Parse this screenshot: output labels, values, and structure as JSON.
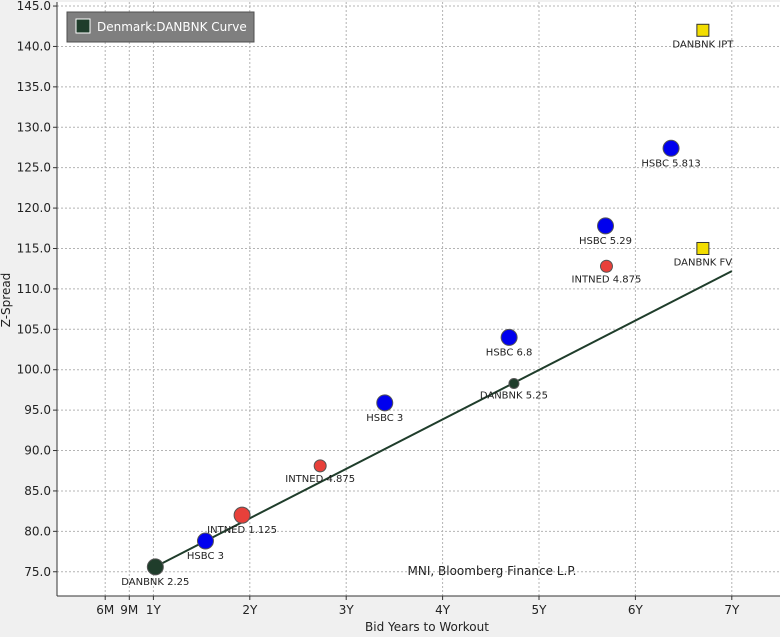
{
  "chart_data": {
    "type": "scatter",
    "title": "",
    "xlabel": "Bid Years to Workout",
    "ylabel": "Z-Spread",
    "xlim": [
      0.0,
      7.5
    ],
    "ylim": [
      72.0,
      145.5
    ],
    "x_ticks": [
      {
        "value": 0.5,
        "label": "6M"
      },
      {
        "value": 0.75,
        "label": "9M"
      },
      {
        "value": 1.0,
        "label": "1Y"
      },
      {
        "value": 2.0,
        "label": "2Y"
      },
      {
        "value": 3.0,
        "label": "3Y"
      },
      {
        "value": 4.0,
        "label": "4Y"
      },
      {
        "value": 5.0,
        "label": "5Y"
      },
      {
        "value": 6.0,
        "label": "6Y"
      },
      {
        "value": 7.0,
        "label": "7Y"
      }
    ],
    "y_ticks": [
      75.0,
      80.0,
      85.0,
      90.0,
      95.0,
      100.0,
      105.0,
      110.0,
      115.0,
      120.0,
      125.0,
      130.0,
      135.0,
      140.0,
      145.0
    ],
    "grid": true,
    "legend": {
      "position": "top-left",
      "entries": [
        {
          "name": "Denmark:DANBNK Curve",
          "color": "#1f3d2b"
        }
      ]
    },
    "curve": {
      "name": "Denmark:DANBNK Curve",
      "color": "#1f3d2b",
      "x": [
        1.0,
        7.0
      ],
      "y": [
        75.5,
        112.2
      ]
    },
    "points": [
      {
        "label": "DANBNK 2.25",
        "x": 1.02,
        "y": 75.6,
        "shape": "circle",
        "size": "large",
        "color": "#1f3d2b"
      },
      {
        "label": "HSBC 3",
        "x": 1.54,
        "y": 78.8,
        "shape": "circle",
        "size": "large",
        "color": "#0000ee"
      },
      {
        "label": "INTNED 1.125",
        "x": 1.92,
        "y": 82.0,
        "shape": "circle",
        "size": "large",
        "color": "#e8403a"
      },
      {
        "label": "INTNED 4.875",
        "x": 2.73,
        "y": 88.1,
        "shape": "circle",
        "size": "small",
        "color": "#e8403a"
      },
      {
        "label": "HSBC 3",
        "x": 3.4,
        "y": 95.9,
        "shape": "circle",
        "size": "large",
        "color": "#0000ee"
      },
      {
        "label": "HSBC 6.8",
        "x": 4.69,
        "y": 104.0,
        "shape": "circle",
        "size": "large",
        "color": "#0000ee"
      },
      {
        "label": "DANBNK 5.25",
        "x": 4.74,
        "y": 98.3,
        "shape": "circle",
        "size": "tiny",
        "color": "#1f3d2b"
      },
      {
        "label": "HSBC 5.29",
        "x": 5.69,
        "y": 117.8,
        "shape": "circle",
        "size": "large",
        "color": "#0000ee"
      },
      {
        "label": "INTNED 4.875",
        "x": 5.7,
        "y": 112.8,
        "shape": "circle",
        "size": "small",
        "color": "#e8403a"
      },
      {
        "label": "HSBC 5.813",
        "x": 6.37,
        "y": 127.4,
        "shape": "circle",
        "size": "large",
        "color": "#0000ee"
      },
      {
        "label": "DANBNK IPT",
        "x": 6.7,
        "y": 142.0,
        "shape": "square",
        "size": "small",
        "color": "#f2dd00"
      },
      {
        "label": "DANBNK FV",
        "x": 6.7,
        "y": 115.0,
        "shape": "square",
        "size": "small",
        "color": "#f2dd00"
      }
    ],
    "source_note": "MNI, Bloomberg Finance L.P."
  }
}
